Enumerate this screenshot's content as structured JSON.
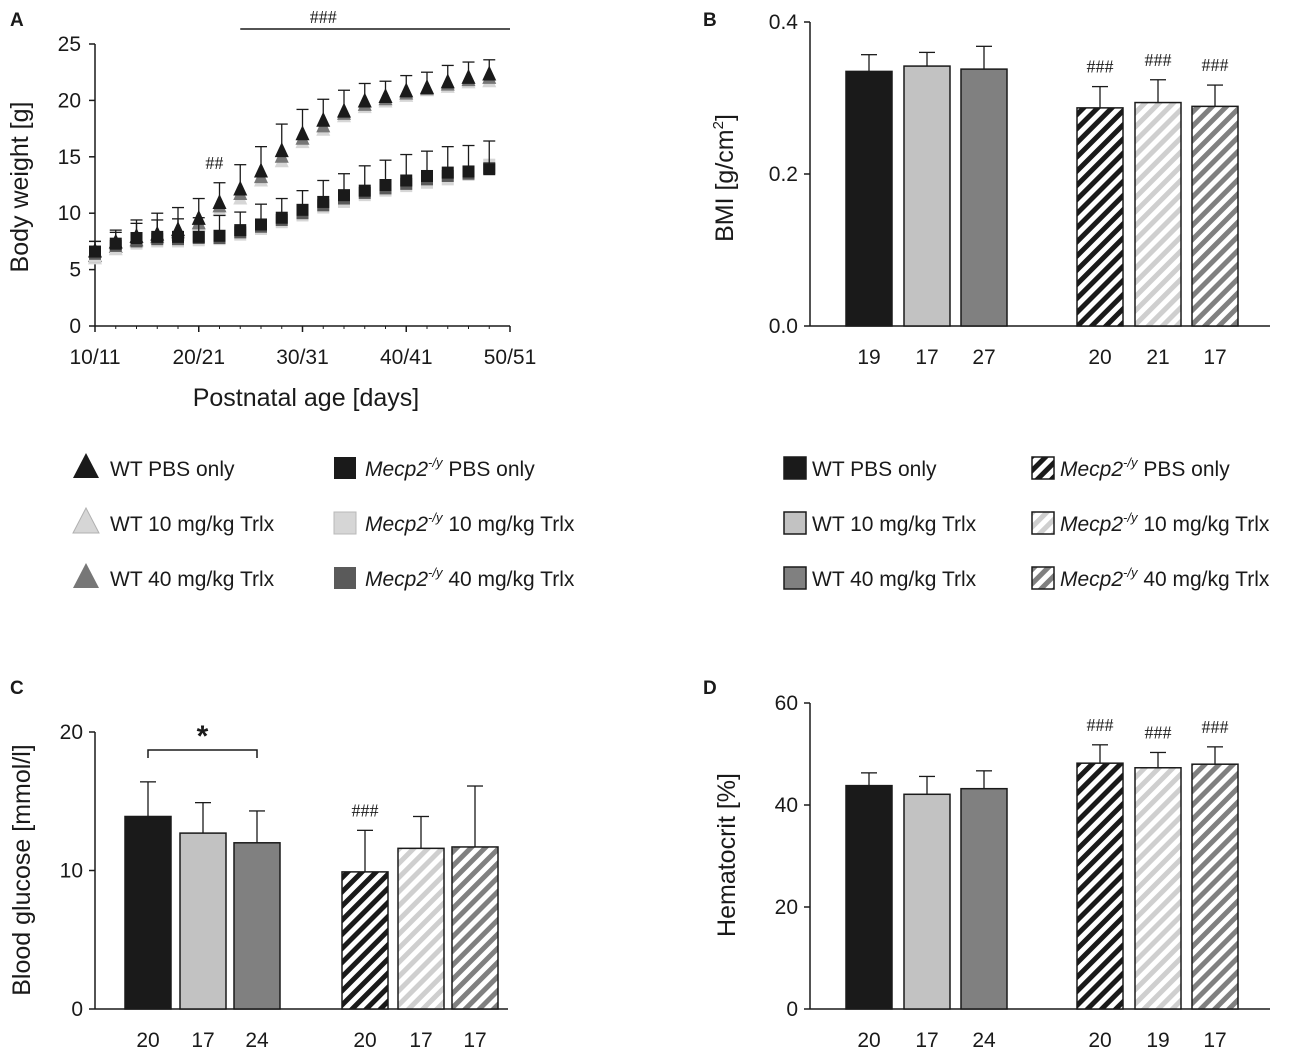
{
  "chart_data": [
    {
      "panel": "A",
      "type": "scatter",
      "xlabel": "Postnatal age  [days]",
      "ylabel": "Body weight [g]",
      "ylim": [
        0,
        25
      ],
      "xlim": [
        10,
        50
      ],
      "xticks": [
        10,
        20,
        30,
        40,
        50
      ],
      "x_tick_labels": [
        "10/11",
        "20/21",
        "30/31",
        "40/41",
        "50/51"
      ],
      "yticks": [
        0,
        5,
        10,
        15,
        20,
        25
      ],
      "x": [
        10,
        12,
        14,
        16,
        18,
        20,
        22,
        24,
        26,
        28,
        30,
        32,
        34,
        36,
        38,
        40,
        42,
        44,
        46,
        48
      ],
      "annotations": [
        {
          "text": "##",
          "x": 21.5,
          "y": 13.9
        },
        {
          "text": "###",
          "x": 32,
          "y": 27,
          "bracket": [
            24,
            50
          ]
        }
      ],
      "series": [
        {
          "name": "WT PBS only",
          "marker": "triangle",
          "color": "#1a1a1a",
          "values": [
            6.6,
            7.4,
            7.9,
            8.1,
            8.5,
            9.5,
            10.9,
            12.1,
            13.7,
            15.5,
            17.0,
            18.2,
            19.0,
            19.9,
            20.3,
            20.8,
            21.1,
            21.6,
            22.0,
            22.3
          ],
          "errors": [
            0.9,
            1.1,
            1.5,
            1.9,
            2.0,
            1.8,
            1.8,
            2.2,
            2.2,
            2.4,
            2.2,
            1.9,
            1.9,
            1.6,
            1.4,
            1.4,
            1.4,
            1.5,
            1.4,
            1.3
          ]
        },
        {
          "name": "WT 10 mg/kg Trlx",
          "marker": "triangle",
          "color": "#d6d6d6",
          "values": [
            6.0,
            6.8,
            7.5,
            7.8,
            8.1,
            8.9,
            10.3,
            11.3,
            12.9,
            14.6,
            16.3,
            17.4,
            18.6,
            19.4,
            19.9,
            20.4,
            20.9,
            21.2,
            21.6,
            21.7
          ],
          "errors": [
            0,
            0,
            0,
            0,
            0,
            0,
            0,
            0,
            0,
            0,
            0,
            0,
            0,
            0,
            0,
            0,
            0,
            0,
            0,
            0
          ]
        },
        {
          "name": "WT 40 mg/kg Trlx",
          "marker": "triangle",
          "color": "#777777",
          "values": [
            6.2,
            7.0,
            7.6,
            7.9,
            8.3,
            9.1,
            10.6,
            11.7,
            13.2,
            15.0,
            16.6,
            17.7,
            18.8,
            19.6,
            20.1,
            20.6,
            21.0,
            21.4,
            21.8,
            22.0
          ],
          "errors": [
            0,
            0,
            0,
            0,
            0,
            0,
            0,
            0,
            0,
            0,
            0,
            0,
            0,
            0,
            0,
            0,
            0,
            0,
            0,
            0
          ]
        },
        {
          "name": "Mecp2-/y PBS only",
          "italic_part": "Mecp2",
          "sup": "-/y",
          "rest": " PBS only",
          "marker": "square",
          "color": "#1a1a1a",
          "values": [
            6.6,
            7.3,
            7.8,
            7.9,
            7.9,
            7.9,
            8.0,
            8.5,
            9.0,
            9.6,
            10.3,
            11.0,
            11.6,
            12.0,
            12.5,
            12.9,
            13.3,
            13.6,
            13.7,
            13.9
          ],
          "errors": [
            0.9,
            1.0,
            1.3,
            1.5,
            1.6,
            1.7,
            1.8,
            1.6,
            1.8,
            1.7,
            1.7,
            1.9,
            1.9,
            2.2,
            2.2,
            2.3,
            2.2,
            2.3,
            2.3,
            2.5
          ]
        },
        {
          "name": "Mecp2-/y 10 mg/kg Trlx",
          "italic_part": "Mecp2",
          "sup": "-/y",
          "rest": " 10 mg/kg Trlx",
          "marker": "square",
          "color": "#d6d6d6",
          "values": [
            6.2,
            6.9,
            7.3,
            7.5,
            7.5,
            7.6,
            7.7,
            8.1,
            8.6,
            9.2,
            9.8,
            10.5,
            11.0,
            11.6,
            12.0,
            12.4,
            12.7,
            13.0,
            13.4,
            14.3
          ],
          "errors": [
            0,
            0,
            0,
            0,
            0,
            0,
            0,
            0,
            0,
            0,
            0,
            0,
            0,
            0,
            0,
            0,
            0,
            0,
            0,
            0
          ]
        },
        {
          "name": "Mecp2-/y 40 mg/kg Trlx",
          "italic_part": "Mecp2",
          "sup": "-/y",
          "rest": " 40 mg/kg Trlx",
          "marker": "square",
          "color": "#5a5a5a",
          "values": [
            6.4,
            7.1,
            7.5,
            7.7,
            7.7,
            7.8,
            7.8,
            8.3,
            8.8,
            9.4,
            10.0,
            10.7,
            11.3,
            11.8,
            12.2,
            12.6,
            13.0,
            13.3,
            13.5,
            14.0
          ],
          "errors": [
            0,
            0,
            0,
            0,
            0,
            0,
            0,
            0,
            0,
            0,
            0,
            0,
            0,
            0,
            0,
            0,
            0,
            0,
            0,
            0
          ]
        }
      ]
    },
    {
      "panel": "B",
      "type": "bar",
      "ylabel": "BMI  [g/cm",
      "ylabel_sup": "2",
      "ylabel_end": "]",
      "ylim": [
        0,
        0.4
      ],
      "yticks": [
        0,
        0.2,
        0.4
      ],
      "ytick_labels": [
        "0.0",
        "0.2",
        "0.4"
      ],
      "bars": [
        {
          "name": "WT PBS only",
          "value": 0.335,
          "error": 0.022,
          "n": "19",
          "sig": ""
        },
        {
          "name": "WT 10 mg/kg Trlx",
          "value": 0.342,
          "error": 0.018,
          "n": "17",
          "sig": ""
        },
        {
          "name": "WT 40 mg/kg Trlx",
          "value": 0.338,
          "error": 0.03,
          "n": "27",
          "sig": ""
        },
        {
          "name": "Mecp2-/y PBS only",
          "value": 0.287,
          "error": 0.028,
          "n": "20",
          "sig": "###"
        },
        {
          "name": "Mecp2-/y 10 mg/kg Trlx",
          "value": 0.294,
          "error": 0.03,
          "n": "21",
          "sig": "###"
        },
        {
          "name": "Mecp2-/y 40 mg/kg Trlx",
          "value": 0.289,
          "error": 0.028,
          "n": "17",
          "sig": "###"
        }
      ]
    },
    {
      "panel": "C",
      "type": "bar",
      "ylabel": "Blood glucose [mmol/l]",
      "ylim": [
        0,
        20
      ],
      "yticks": [
        0,
        10,
        20
      ],
      "ytick_labels": [
        "0",
        "10",
        "20"
      ],
      "bracket": {
        "from": 0,
        "to": 2,
        "text": "*"
      },
      "bars": [
        {
          "name": "WT PBS only",
          "value": 13.9,
          "error": 2.5,
          "n": "20",
          "sig": ""
        },
        {
          "name": "WT 10 mg/kg Trlx",
          "value": 12.7,
          "error": 2.2,
          "n": "17",
          "sig": ""
        },
        {
          "name": "WT 40 mg/kg Trlx",
          "value": 12.0,
          "error": 2.3,
          "n": "24",
          "sig": ""
        },
        {
          "name": "Mecp2-/y PBS only",
          "value": 9.9,
          "error": 3.0,
          "n": "20",
          "sig": "###"
        },
        {
          "name": "Mecp2-/y 10 mg/kg Trlx",
          "value": 11.6,
          "error": 2.3,
          "n": "17",
          "sig": ""
        },
        {
          "name": "Mecp2-/y 40 mg/kg Trlx",
          "value": 11.7,
          "error": 4.4,
          "n": "17",
          "sig": ""
        }
      ]
    },
    {
      "panel": "D",
      "type": "bar",
      "ylabel": "Hematocrit  [%]",
      "ylim": [
        0,
        60
      ],
      "yticks": [
        0,
        20,
        40,
        60
      ],
      "ytick_labels": [
        "0",
        "20",
        "40",
        "60"
      ],
      "bars": [
        {
          "name": "WT PBS only",
          "value": 43.8,
          "error": 2.5,
          "n": "20",
          "sig": ""
        },
        {
          "name": "WT 10 mg/kg Trlx",
          "value": 42.1,
          "error": 3.5,
          "n": "17",
          "sig": ""
        },
        {
          "name": "WT 40 mg/kg Trlx",
          "value": 43.2,
          "error": 3.5,
          "n": "24",
          "sig": ""
        },
        {
          "name": "Mecp2-/y PBS only",
          "value": 48.2,
          "error": 3.6,
          "n": "20",
          "sig": "###"
        },
        {
          "name": "Mecp2-/y 10 mg/kg Trlx",
          "value": 47.3,
          "error": 3.0,
          "n": "19",
          "sig": "###"
        },
        {
          "name": "Mecp2-/y 40 mg/kg Trlx",
          "value": 48.0,
          "error": 3.4,
          "n": "17",
          "sig": "###"
        }
      ]
    }
  ],
  "bar_styles": [
    {
      "fill": "#1a1a1a",
      "hatch": false
    },
    {
      "fill": "#c2c2c2",
      "hatch": false
    },
    {
      "fill": "#808080",
      "hatch": false
    },
    {
      "fill": "#ffffff",
      "hatch": true,
      "stripe": "#1a1a1a"
    },
    {
      "fill": "#ffffff",
      "hatch": true,
      "stripe": "#cfcfcf"
    },
    {
      "fill": "#ffffff",
      "hatch": true,
      "stripe": "#808080"
    }
  ],
  "legend_A": [
    {
      "marker": "triangle",
      "color": "#1a1a1a",
      "label": "WT PBS only"
    },
    {
      "marker": "square",
      "color": "#1a1a1a",
      "italic": "Mecp2",
      "sup": "-/y",
      "label": " PBS only"
    },
    {
      "marker": "triangle",
      "color": "#d6d6d6",
      "label": "WT 10 mg/kg Trlx"
    },
    {
      "marker": "square",
      "color": "#d6d6d6",
      "italic": "Mecp2",
      "sup": "-/y",
      "label": " 10 mg/kg Trlx"
    },
    {
      "marker": "triangle",
      "color": "#777777",
      "label": "WT 40 mg/kg Trlx"
    },
    {
      "marker": "square",
      "color": "#5a5a5a",
      "italic": "Mecp2",
      "sup": "-/y",
      "label": " 40 mg/kg Trlx"
    }
  ],
  "legend_B": [
    {
      "style": 0,
      "label": "WT PBS only"
    },
    {
      "style": 3,
      "italic": "Mecp2",
      "sup": "-/y",
      "label": " PBS only"
    },
    {
      "style": 1,
      "label": "WT 10 mg/kg Trlx"
    },
    {
      "style": 4,
      "italic": "Mecp2",
      "sup": "-/y",
      "label": " 10 mg/kg Trlx"
    },
    {
      "style": 2,
      "label": "WT 40 mg/kg Trlx"
    },
    {
      "style": 5,
      "italic": "Mecp2",
      "sup": "-/y",
      "label": " 40 mg/kg Trlx"
    }
  ],
  "panel_letters": [
    "A",
    "B",
    "C",
    "D"
  ]
}
